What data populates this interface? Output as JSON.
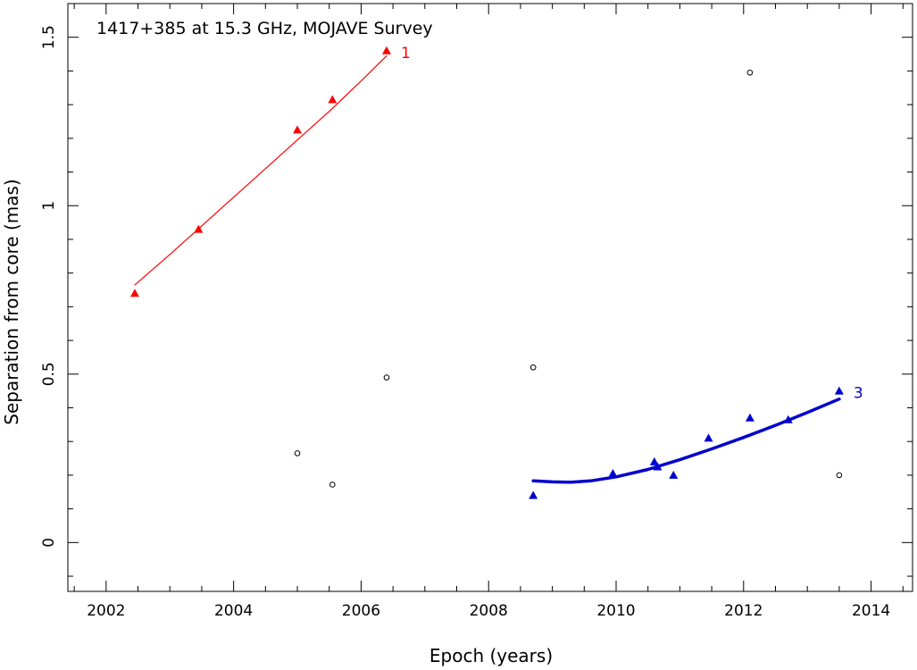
{
  "chart_data": {
    "type": "scatter",
    "title": "1417+385 at 15.3 GHz, MOJAVE Survey",
    "xlabel": "Epoch (years)",
    "ylabel": "Separation from core (mas)",
    "xlim": [
      2001.4,
      2014.65
    ],
    "ylim": [
      -0.145,
      1.6
    ],
    "xticks": [
      2002,
      2004,
      2006,
      2008,
      2010,
      2012,
      2014
    ],
    "xtick_labels": [
      "2002",
      "2004",
      "2006",
      "2008",
      "2010",
      "2012",
      "2014"
    ],
    "yticks": [
      0,
      0.5,
      1,
      1.5
    ],
    "ytick_labels": [
      "0",
      "0.5",
      "1",
      "1.5"
    ],
    "grid": false,
    "series": [
      {
        "name": "1",
        "marker": "filled-triangle",
        "color": "#ff0000",
        "points": [
          [
            2002.45,
            0.74
          ],
          [
            2003.45,
            0.93
          ],
          [
            2005.0,
            1.225
          ],
          [
            2005.55,
            1.315
          ],
          [
            2006.4,
            1.46
          ]
        ],
        "fit": [
          [
            2002.45,
            0.765
          ],
          [
            2003.0,
            0.855
          ],
          [
            2003.5,
            0.94
          ],
          [
            2004.0,
            1.025
          ],
          [
            2004.5,
            1.11
          ],
          [
            2005.0,
            1.195
          ],
          [
            2005.5,
            1.28
          ],
          [
            2006.0,
            1.37
          ],
          [
            2006.4,
            1.445
          ]
        ],
        "fit_width": 1.2
      },
      {
        "name": "3",
        "marker": "filled-triangle",
        "color": "#0000cc",
        "points": [
          [
            2008.7,
            0.14
          ],
          [
            2009.95,
            0.205
          ],
          [
            2010.6,
            0.24
          ],
          [
            2010.65,
            0.225
          ],
          [
            2010.9,
            0.2
          ],
          [
            2011.45,
            0.31
          ],
          [
            2012.1,
            0.37
          ],
          [
            2012.7,
            0.365
          ],
          [
            2013.5,
            0.45
          ]
        ],
        "fit": [
          [
            2008.7,
            0.183
          ],
          [
            2009.0,
            0.18
          ],
          [
            2009.3,
            0.179
          ],
          [
            2009.6,
            0.183
          ],
          [
            2010.0,
            0.195
          ],
          [
            2010.5,
            0.217
          ],
          [
            2011.0,
            0.246
          ],
          [
            2011.5,
            0.278
          ],
          [
            2012.0,
            0.312
          ],
          [
            2012.5,
            0.348
          ],
          [
            2013.0,
            0.386
          ],
          [
            2013.5,
            0.426
          ]
        ],
        "fit_width": 3.5
      },
      {
        "name": "",
        "marker": "open-circle",
        "color": "#000000",
        "points": [
          [
            2005.0,
            0.265
          ],
          [
            2005.55,
            0.172
          ],
          [
            2006.4,
            0.49
          ],
          [
            2008.7,
            0.52
          ],
          [
            2012.1,
            1.395
          ],
          [
            2013.5,
            0.2
          ]
        ]
      }
    ]
  }
}
